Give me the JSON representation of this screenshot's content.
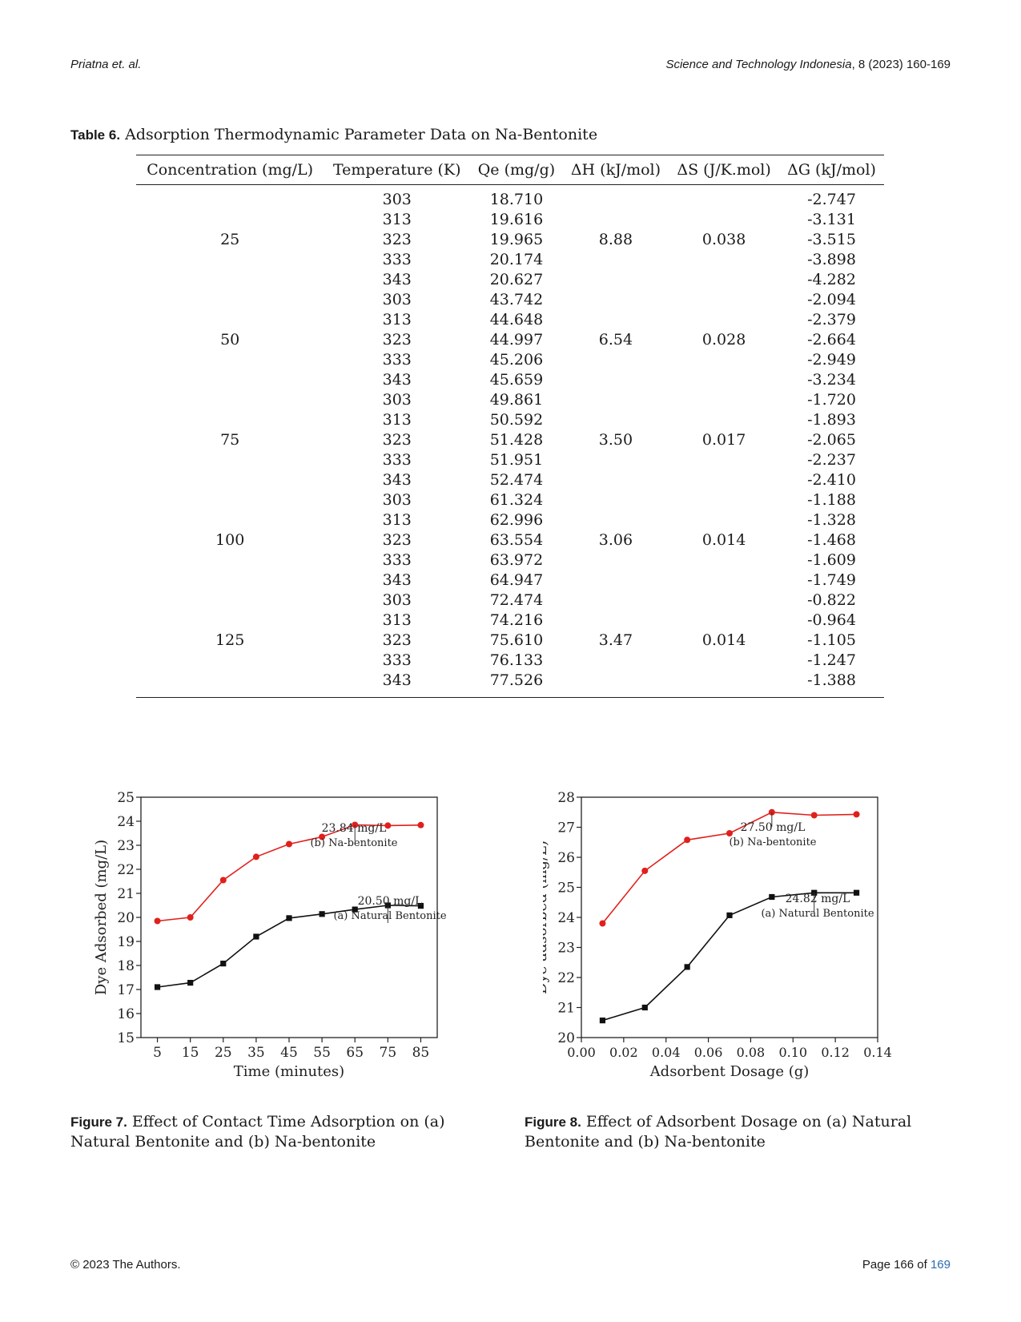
{
  "header": {
    "authors": "Priatna et. al.",
    "journal": "Science and Technology Indonesia",
    "volume_pages": ", 8 (2023) 160-169"
  },
  "table": {
    "label": "Table 6.",
    "title": "Adsorption Thermodynamic Parameter Data on Na-Bentonite",
    "columns": [
      "Concentration (mg/L)",
      "Temperature (K)",
      "Qe (mg/g)",
      "ΔH (kJ/mol)",
      "ΔS (J/K.mol)",
      "ΔG (kJ/mol)"
    ],
    "groups": [
      {
        "conc": "25",
        "dH": "8.88",
        "dS": "0.038",
        "rows": [
          {
            "T": "303",
            "Qe": "18.710",
            "dG": "-2.747"
          },
          {
            "T": "313",
            "Qe": "19.616",
            "dG": "-3.131"
          },
          {
            "T": "323",
            "Qe": "19.965",
            "dG": "-3.515"
          },
          {
            "T": "333",
            "Qe": "20.174",
            "dG": "-3.898"
          },
          {
            "T": "343",
            "Qe": "20.627",
            "dG": "-4.282"
          }
        ]
      },
      {
        "conc": "50",
        "dH": "6.54",
        "dS": "0.028",
        "rows": [
          {
            "T": "303",
            "Qe": "43.742",
            "dG": "-2.094"
          },
          {
            "T": "313",
            "Qe": "44.648",
            "dG": "-2.379"
          },
          {
            "T": "323",
            "Qe": "44.997",
            "dG": "-2.664"
          },
          {
            "T": "333",
            "Qe": "45.206",
            "dG": "-2.949"
          },
          {
            "T": "343",
            "Qe": "45.659",
            "dG": "-3.234"
          }
        ]
      },
      {
        "conc": "75",
        "dH": "3.50",
        "dS": "0.017",
        "rows": [
          {
            "T": "303",
            "Qe": "49.861",
            "dG": "-1.720"
          },
          {
            "T": "313",
            "Qe": "50.592",
            "dG": "-1.893"
          },
          {
            "T": "323",
            "Qe": "51.428",
            "dG": "-2.065"
          },
          {
            "T": "333",
            "Qe": "51.951",
            "dG": "-2.237"
          },
          {
            "T": "343",
            "Qe": "52.474",
            "dG": "-2.410"
          }
        ]
      },
      {
        "conc": "100",
        "dH": "3.06",
        "dS": "0.014",
        "rows": [
          {
            "T": "303",
            "Qe": "61.324",
            "dG": "-1.188"
          },
          {
            "T": "313",
            "Qe": "62.996",
            "dG": "-1.328"
          },
          {
            "T": "323",
            "Qe": "63.554",
            "dG": "-1.468"
          },
          {
            "T": "333",
            "Qe": "63.972",
            "dG": "-1.609"
          },
          {
            "T": "343",
            "Qe": "64.947",
            "dG": "-1.749"
          }
        ]
      },
      {
        "conc": "125",
        "dH": "3.47",
        "dS": "0.014",
        "rows": [
          {
            "T": "303",
            "Qe": "72.474",
            "dG": "-0.822"
          },
          {
            "T": "313",
            "Qe": "74.216",
            "dG": "-0.964"
          },
          {
            "T": "323",
            "Qe": "75.610",
            "dG": "-1.105"
          },
          {
            "T": "333",
            "Qe": "76.133",
            "dG": "-1.247"
          },
          {
            "T": "343",
            "Qe": "77.526",
            "dG": "-1.388"
          }
        ]
      }
    ]
  },
  "chart_data": [
    {
      "type": "line",
      "xlabel": "Time (minutes)",
      "ylabel": "Dye Adsorbed (mg/L)",
      "xlim": [
        0,
        90
      ],
      "ylim": [
        15,
        25
      ],
      "xticks": [
        5,
        15,
        25,
        35,
        45,
        55,
        65,
        75,
        85
      ],
      "yticks": [
        15,
        16,
        17,
        18,
        19,
        20,
        21,
        22,
        23,
        24,
        25
      ],
      "grid": false,
      "series": [
        {
          "name": "(b) Na-bentonite",
          "color": "#e0201c",
          "marker": "circle",
          "x": [
            5,
            15,
            25,
            35,
            45,
            55,
            65,
            75,
            85
          ],
          "y": [
            19.85,
            20.0,
            21.55,
            22.52,
            23.05,
            23.35,
            23.85,
            23.82,
            23.84
          ]
        },
        {
          "name": "(a) Natural Bentonite",
          "color": "#111111",
          "marker": "square",
          "x": [
            5,
            15,
            25,
            35,
            45,
            55,
            65,
            75,
            85
          ],
          "y": [
            17.1,
            17.28,
            18.08,
            19.2,
            19.97,
            20.14,
            20.33,
            20.5,
            20.48
          ]
        }
      ],
      "annotations": [
        {
          "value": "23.84 mg/L",
          "label": "(b) Na-bentonite"
        },
        {
          "value": "20.50 mg/L",
          "label": "(a) Natural Bentonite"
        }
      ]
    },
    {
      "type": "line",
      "xlabel": "Adsorbent Dosage (g)",
      "ylabel": "Dye adsorbed (mg/L)",
      "xlim": [
        0,
        0.14
      ],
      "ylim": [
        20,
        28
      ],
      "xticks": [
        "0.00",
        "0.02",
        "0.04",
        "0.06",
        "0.08",
        "0.10",
        "0.12",
        "0.14"
      ],
      "yticks": [
        20,
        21,
        22,
        23,
        24,
        25,
        26,
        27,
        28
      ],
      "grid": false,
      "series": [
        {
          "name": "(b) Na-bentonite",
          "color": "#e0201c",
          "marker": "circle",
          "x": [
            0.01,
            0.03,
            0.05,
            0.07,
            0.09,
            0.11,
            0.13
          ],
          "y": [
            23.8,
            25.55,
            26.58,
            26.8,
            27.5,
            27.4,
            27.43
          ]
        },
        {
          "name": "(a) Natural Bentonite",
          "color": "#111111",
          "marker": "square",
          "x": [
            0.01,
            0.03,
            0.05,
            0.07,
            0.09,
            0.11,
            0.13
          ],
          "y": [
            20.57,
            21.0,
            22.35,
            24.07,
            24.68,
            24.82,
            24.82
          ]
        }
      ],
      "annotations": [
        {
          "value": "27.50 mg/L",
          "label": "(b) Na-bentonite"
        },
        {
          "value": "24.82 mg/L",
          "label": "(a) Natural Bentonite"
        }
      ]
    }
  ],
  "figures": [
    {
      "label": "Figure 7.",
      "caption": "Effect of Contact Time Adsorption on (a)  Natural Bentonite and (b)  Na-bentonite"
    },
    {
      "label": "Figure 8.",
      "caption": "Effect of Adsorbent Dosage on (a)  Natural Bentonite and (b)  Na-bentonite"
    }
  ],
  "footer": {
    "copyright": "© 2023 The Authors.",
    "page_prefix": "Page 166 of ",
    "page_total": "169"
  }
}
